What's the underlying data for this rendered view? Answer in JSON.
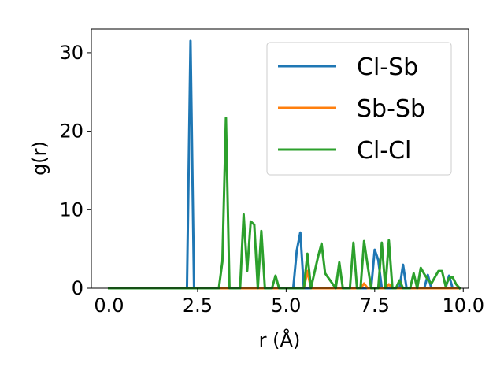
{
  "chart_data": {
    "type": "line",
    "xlabel": "r (Å)",
    "ylabel": "g(r)",
    "xlim": [
      -0.5,
      10.15
    ],
    "ylim": [
      0,
      33
    ],
    "xticks": [
      "0.0",
      "2.5",
      "5.0",
      "7.5",
      "10.0"
    ],
    "yticks": [
      "0",
      "10",
      "20",
      "30"
    ],
    "grid": false,
    "legend_position": "top-right",
    "series": [
      {
        "name": "Cl-Sb",
        "color": "#1f77b4",
        "x": [
          0.0,
          2.2,
          2.3,
          2.4,
          5.2,
          5.3,
          5.4,
          5.5,
          7.4,
          7.5,
          7.6,
          7.7,
          8.2,
          8.3,
          8.4,
          8.9,
          9.0,
          9.1,
          9.5,
          9.6,
          9.7,
          9.9
        ],
        "y": [
          0,
          0,
          31.5,
          0,
          0,
          4.8,
          7.1,
          0,
          0,
          4.9,
          3.6,
          0,
          0,
          3.0,
          0,
          0,
          1.7,
          0,
          0,
          1.6,
          0,
          0
        ]
      },
      {
        "name": "Sb-Sb",
        "color": "#ff7f0e",
        "x": [
          0.0,
          5.5,
          5.6,
          5.7,
          7.1,
          7.2,
          7.3,
          7.8,
          7.9,
          8.0,
          9.9
        ],
        "y": [
          0,
          0,
          2.2,
          0,
          0,
          0.6,
          0,
          0,
          0.5,
          0,
          0
        ]
      },
      {
        "name": "Cl-Cl",
        "color": "#2ca02c",
        "x": [
          0.0,
          3.0,
          3.1,
          3.2,
          3.3,
          3.4,
          3.7,
          3.8,
          3.9,
          4.0,
          4.1,
          4.2,
          4.3,
          4.4,
          4.6,
          4.7,
          4.8,
          5.5,
          5.6,
          5.7,
          5.8,
          5.9,
          6.0,
          6.1,
          6.4,
          6.5,
          6.6,
          6.8,
          6.9,
          7.0,
          7.1,
          7.2,
          7.3,
          7.4,
          7.6,
          7.7,
          7.8,
          7.9,
          8.0,
          8.1,
          8.2,
          8.3,
          8.5,
          8.6,
          8.7,
          8.8,
          8.9,
          9.0,
          9.1,
          9.2,
          9.3,
          9.4,
          9.5,
          9.6,
          9.7,
          9.8,
          9.9
        ],
        "y": [
          0,
          0,
          0,
          3.4,
          21.7,
          0,
          0,
          9.4,
          2.2,
          8.5,
          8.1,
          0,
          7.3,
          0,
          0,
          1.6,
          0,
          0,
          4.4,
          0,
          2.0,
          4.0,
          5.7,
          1.9,
          0,
          3.3,
          0,
          0,
          5.8,
          0,
          0,
          6.0,
          2.9,
          0,
          0,
          5.8,
          0,
          6.1,
          0,
          0,
          1.0,
          0,
          0,
          1.9,
          0,
          2.6,
          1.8,
          1.1,
          0.6,
          1.4,
          2.2,
          2.2,
          0.3,
          1.3,
          1.4,
          0.5,
          0
        ]
      }
    ]
  }
}
